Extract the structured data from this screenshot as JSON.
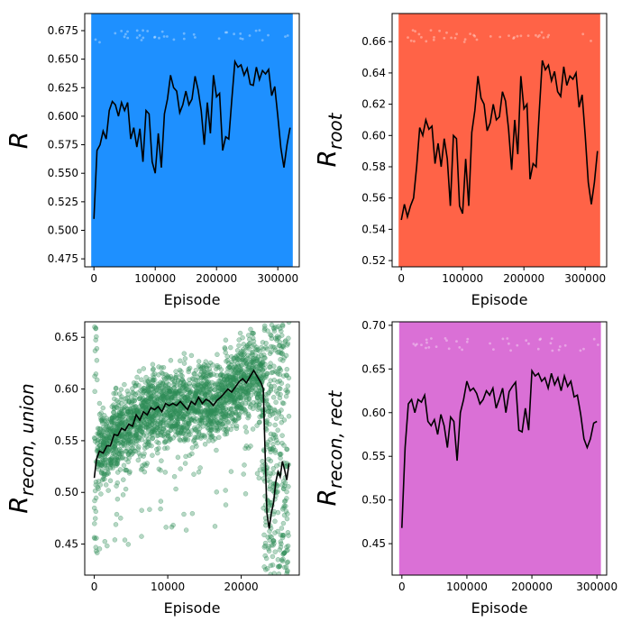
{
  "figure": {
    "colors": {
      "axis": "#000000",
      "mean_line": "#000000"
    }
  },
  "chart_data": [
    {
      "type": "scatter",
      "xlabel": "Episode",
      "ylabel_main": "R",
      "ylabel_sub": "",
      "xlim": [
        -15000,
        335000
      ],
      "ylim": [
        0.468,
        0.69
      ],
      "xticks": [
        0,
        100000,
        200000,
        300000
      ],
      "yticks": [
        0.475,
        0.5,
        0.525,
        0.55,
        0.575,
        0.6,
        0.625,
        0.65,
        0.675
      ],
      "ytick_labels": [
        "0.475",
        "0.500",
        "0.525",
        "0.550",
        "0.575",
        "0.600",
        "0.625",
        "0.650",
        "0.675"
      ],
      "scatter_color": "#1e90ff",
      "scatter_x_range": [
        0,
        320000
      ],
      "scatter_style": "dense",
      "mean_line": {
        "x": [
          0,
          5000,
          10000,
          15000,
          20000,
          25000,
          30000,
          35000,
          40000,
          45000,
          50000,
          55000,
          60000,
          65000,
          70000,
          75000,
          80000,
          85000,
          90000,
          95000,
          100000,
          105000,
          110000,
          115000,
          120000,
          125000,
          130000,
          135000,
          140000,
          145000,
          150000,
          155000,
          160000,
          165000,
          170000,
          175000,
          180000,
          185000,
          190000,
          195000,
          200000,
          205000,
          210000,
          215000,
          220000,
          225000,
          230000,
          235000,
          240000,
          245000,
          250000,
          255000,
          260000,
          265000,
          270000,
          275000,
          280000,
          285000,
          290000,
          295000,
          300000,
          305000,
          310000,
          315000,
          320000
        ],
        "y": [
          0.51,
          0.57,
          0.575,
          0.587,
          0.58,
          0.605,
          0.613,
          0.61,
          0.6,
          0.612,
          0.605,
          0.612,
          0.58,
          0.59,
          0.573,
          0.589,
          0.56,
          0.605,
          0.602,
          0.56,
          0.55,
          0.585,
          0.555,
          0.602,
          0.615,
          0.636,
          0.625,
          0.622,
          0.603,
          0.61,
          0.622,
          0.61,
          0.615,
          0.635,
          0.623,
          0.605,
          0.575,
          0.612,
          0.585,
          0.636,
          0.617,
          0.62,
          0.57,
          0.582,
          0.58,
          0.615,
          0.648,
          0.643,
          0.645,
          0.636,
          0.642,
          0.628,
          0.627,
          0.643,
          0.632,
          0.64,
          0.637,
          0.641,
          0.618,
          0.626,
          0.6,
          0.572,
          0.555,
          0.575,
          0.59
        ]
      }
    },
    {
      "type": "scatter",
      "xlabel": "Episode",
      "ylabel_main": "R",
      "ylabel_sub": "root",
      "xlim": [
        -15000,
        335000
      ],
      "ylim": [
        0.516,
        0.678
      ],
      "xticks": [
        0,
        100000,
        200000,
        300000
      ],
      "yticks": [
        0.52,
        0.54,
        0.56,
        0.58,
        0.6,
        0.62,
        0.64,
        0.66
      ],
      "ytick_labels": [
        "0.52",
        "0.54",
        "0.56",
        "0.58",
        "0.60",
        "0.62",
        "0.64",
        "0.66"
      ],
      "scatter_color": "#ff6347",
      "scatter_x_range": [
        0,
        320000
      ],
      "scatter_style": "dense",
      "mean_line": {
        "x": [
          0,
          5000,
          10000,
          15000,
          20000,
          25000,
          30000,
          35000,
          40000,
          45000,
          50000,
          55000,
          60000,
          65000,
          70000,
          75000,
          80000,
          85000,
          90000,
          95000,
          100000,
          105000,
          110000,
          115000,
          120000,
          125000,
          130000,
          135000,
          140000,
          145000,
          150000,
          155000,
          160000,
          165000,
          170000,
          175000,
          180000,
          185000,
          190000,
          195000,
          200000,
          205000,
          210000,
          215000,
          220000,
          225000,
          230000,
          235000,
          240000,
          245000,
          250000,
          255000,
          260000,
          265000,
          270000,
          275000,
          280000,
          285000,
          290000,
          295000,
          300000,
          305000,
          310000,
          315000,
          320000
        ],
        "y": [
          0.546,
          0.556,
          0.548,
          0.555,
          0.56,
          0.58,
          0.605,
          0.6,
          0.61,
          0.604,
          0.606,
          0.582,
          0.595,
          0.58,
          0.598,
          0.585,
          0.555,
          0.6,
          0.598,
          0.555,
          0.55,
          0.585,
          0.555,
          0.602,
          0.616,
          0.638,
          0.624,
          0.62,
          0.603,
          0.608,
          0.62,
          0.61,
          0.612,
          0.628,
          0.622,
          0.604,
          0.578,
          0.61,
          0.588,
          0.638,
          0.617,
          0.62,
          0.572,
          0.582,
          0.58,
          0.615,
          0.648,
          0.642,
          0.645,
          0.635,
          0.641,
          0.628,
          0.625,
          0.644,
          0.632,
          0.638,
          0.636,
          0.64,
          0.618,
          0.626,
          0.6,
          0.57,
          0.556,
          0.57,
          0.59
        ]
      }
    },
    {
      "type": "scatter",
      "xlabel": "Episode",
      "ylabel_main": "R",
      "ylabel_sub": "recon, union",
      "xlim": [
        -1300,
        27900
      ],
      "ylim": [
        0.42,
        0.665
      ],
      "xticks": [
        0,
        10000,
        20000
      ],
      "yticks": [
        0.45,
        0.5,
        0.55,
        0.6,
        0.65
      ],
      "ytick_labels": [
        "0.45",
        "0.50",
        "0.55",
        "0.60",
        "0.65"
      ],
      "scatter_color": "#2e8b57",
      "scatter_x_range": [
        0,
        26500
      ],
      "scatter_style": "band",
      "mean_line": {
        "x": [
          0,
          300,
          700,
          1200,
          1700,
          2200,
          2700,
          3200,
          3700,
          4200,
          4700,
          5200,
          5700,
          6200,
          6700,
          7200,
          7700,
          8200,
          8700,
          9200,
          9700,
          10200,
          10700,
          11200,
          11700,
          12200,
          12700,
          13200,
          13700,
          14200,
          14700,
          15200,
          15700,
          16200,
          16700,
          17200,
          17700,
          18200,
          18700,
          19200,
          19700,
          20200,
          20700,
          21200,
          21700,
          22200,
          22700,
          23000,
          23200,
          23500,
          23800,
          24100,
          24400,
          24700,
          25000,
          25300,
          25600,
          25900,
          26200,
          26500
        ],
        "y": [
          0.514,
          0.532,
          0.54,
          0.538,
          0.545,
          0.545,
          0.556,
          0.555,
          0.562,
          0.56,
          0.566,
          0.564,
          0.575,
          0.57,
          0.578,
          0.575,
          0.582,
          0.58,
          0.583,
          0.578,
          0.586,
          0.584,
          0.586,
          0.584,
          0.588,
          0.584,
          0.58,
          0.588,
          0.585,
          0.592,
          0.586,
          0.59,
          0.588,
          0.584,
          0.589,
          0.592,
          0.596,
          0.6,
          0.597,
          0.602,
          0.607,
          0.61,
          0.606,
          0.612,
          0.618,
          0.612,
          0.606,
          0.6,
          0.55,
          0.48,
          0.465,
          0.48,
          0.49,
          0.51,
          0.52,
          0.515,
          0.53,
          0.522,
          0.512,
          0.528
        ]
      }
    },
    {
      "type": "scatter",
      "xlabel": "Episode",
      "ylabel_main": "R",
      "ylabel_sub": "recon, rect",
      "xlim": [
        -15000,
        315000
      ],
      "ylim": [
        0.414,
        0.704
      ],
      "xticks": [
        0,
        100000,
        200000,
        300000
      ],
      "yticks": [
        0.45,
        0.5,
        0.55,
        0.6,
        0.65,
        0.7
      ],
      "ytick_labels": [
        "0.45",
        "0.50",
        "0.55",
        "0.60",
        "0.65",
        "0.70"
      ],
      "scatter_color": "#da70d6",
      "scatter_x_range": [
        0,
        302000
      ],
      "scatter_style": "dense",
      "mean_line": {
        "x": [
          0,
          5000,
          10000,
          15000,
          20000,
          25000,
          30000,
          35000,
          40000,
          45000,
          50000,
          55000,
          60000,
          65000,
          70000,
          75000,
          80000,
          85000,
          90000,
          95000,
          100000,
          105000,
          110000,
          115000,
          120000,
          125000,
          130000,
          135000,
          140000,
          145000,
          150000,
          155000,
          160000,
          165000,
          170000,
          175000,
          180000,
          185000,
          190000,
          195000,
          200000,
          205000,
          210000,
          215000,
          220000,
          225000,
          230000,
          235000,
          240000,
          245000,
          250000,
          255000,
          260000,
          265000,
          270000,
          275000,
          280000,
          285000,
          290000,
          295000,
          300000
        ],
        "y": [
          0.468,
          0.56,
          0.61,
          0.615,
          0.6,
          0.615,
          0.612,
          0.62,
          0.59,
          0.585,
          0.592,
          0.575,
          0.598,
          0.585,
          0.56,
          0.595,
          0.59,
          0.545,
          0.6,
          0.615,
          0.636,
          0.625,
          0.628,
          0.622,
          0.61,
          0.615,
          0.625,
          0.62,
          0.628,
          0.605,
          0.616,
          0.628,
          0.6,
          0.624,
          0.63,
          0.635,
          0.58,
          0.578,
          0.605,
          0.58,
          0.648,
          0.642,
          0.645,
          0.636,
          0.64,
          0.628,
          0.645,
          0.632,
          0.64,
          0.625,
          0.642,
          0.63,
          0.636,
          0.618,
          0.62,
          0.598,
          0.57,
          0.56,
          0.57,
          0.588,
          0.59
        ]
      }
    }
  ]
}
